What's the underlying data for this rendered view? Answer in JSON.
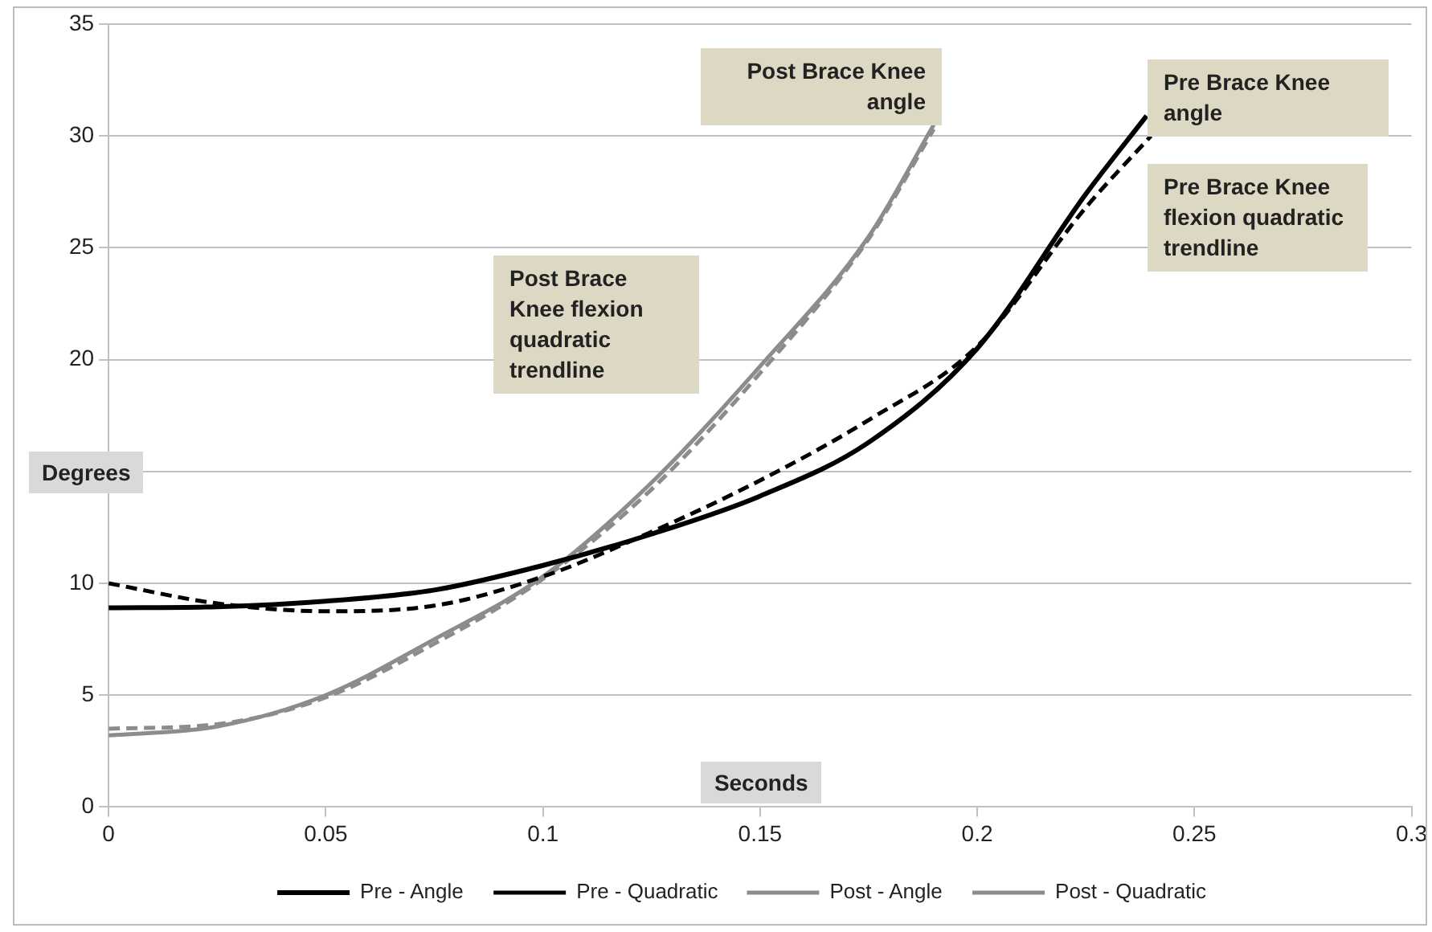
{
  "chart_data": {
    "type": "line",
    "xlabel": "Seconds",
    "ylabel": "Degrees",
    "xlim": [
      0,
      0.3
    ],
    "xticks": [
      0,
      0.05,
      0.1,
      0.15,
      0.2,
      0.25,
      0.3
    ],
    "ylim": [
      0,
      35
    ],
    "yticks": [
      0,
      5,
      10,
      {
        "value": 15,
        "label": null
      },
      20,
      25,
      30,
      35
    ],
    "grid": "y",
    "legend": "bottom",
    "marker": "none",
    "series": [
      {
        "name": "Pre - Angle",
        "color": "#000000",
        "line_style": "solid",
        "x": [
          0,
          0.025,
          0.05,
          0.075,
          0.1,
          0.125,
          0.15,
          0.175,
          0.2,
          0.225,
          0.239
        ],
        "values": [
          8.9,
          8.95,
          9.2,
          9.7,
          10.8,
          12.2,
          13.9,
          16.3,
          20.5,
          27.4,
          30.9
        ]
      },
      {
        "name": "Pre - Quadratic",
        "color": "#000000",
        "line_style": "dashed",
        "x": [
          0,
          0.025,
          0.05,
          0.075,
          0.1,
          0.125,
          0.15,
          0.175,
          0.2,
          0.225,
          0.24
        ],
        "values": [
          10,
          9.1,
          8.75,
          9,
          10.3,
          12.3,
          14.6,
          17.3,
          20.6,
          26.8,
          30
        ]
      },
      {
        "name": "Post - Angle",
        "color": "#8c8c8c",
        "line_style": "solid",
        "x": [
          0,
          0.025,
          0.05,
          0.075,
          0.1,
          0.125,
          0.15,
          0.175,
          0.19
        ],
        "values": [
          3.2,
          3.6,
          5,
          7.5,
          10.3,
          14.5,
          19.7,
          25.5,
          30.5
        ]
      },
      {
        "name": "Post - Quadratic",
        "color": "#8c8c8c",
        "line_style": "dashed",
        "x": [
          0,
          0.025,
          0.05,
          0.075,
          0.1,
          0.125,
          0.15,
          0.175,
          0.19
        ],
        "values": [
          3.5,
          3.7,
          4.9,
          7.3,
          10.2,
          14.2,
          19.4,
          25.4,
          30.3
        ]
      }
    ],
    "annotations": [
      "Post Brace Knee angle",
      "Pre Brace Knee angle",
      "Pre Brace Knee flexion quadratic trendline",
      "Post Brace Knee flexion quadratic trendline"
    ]
  }
}
